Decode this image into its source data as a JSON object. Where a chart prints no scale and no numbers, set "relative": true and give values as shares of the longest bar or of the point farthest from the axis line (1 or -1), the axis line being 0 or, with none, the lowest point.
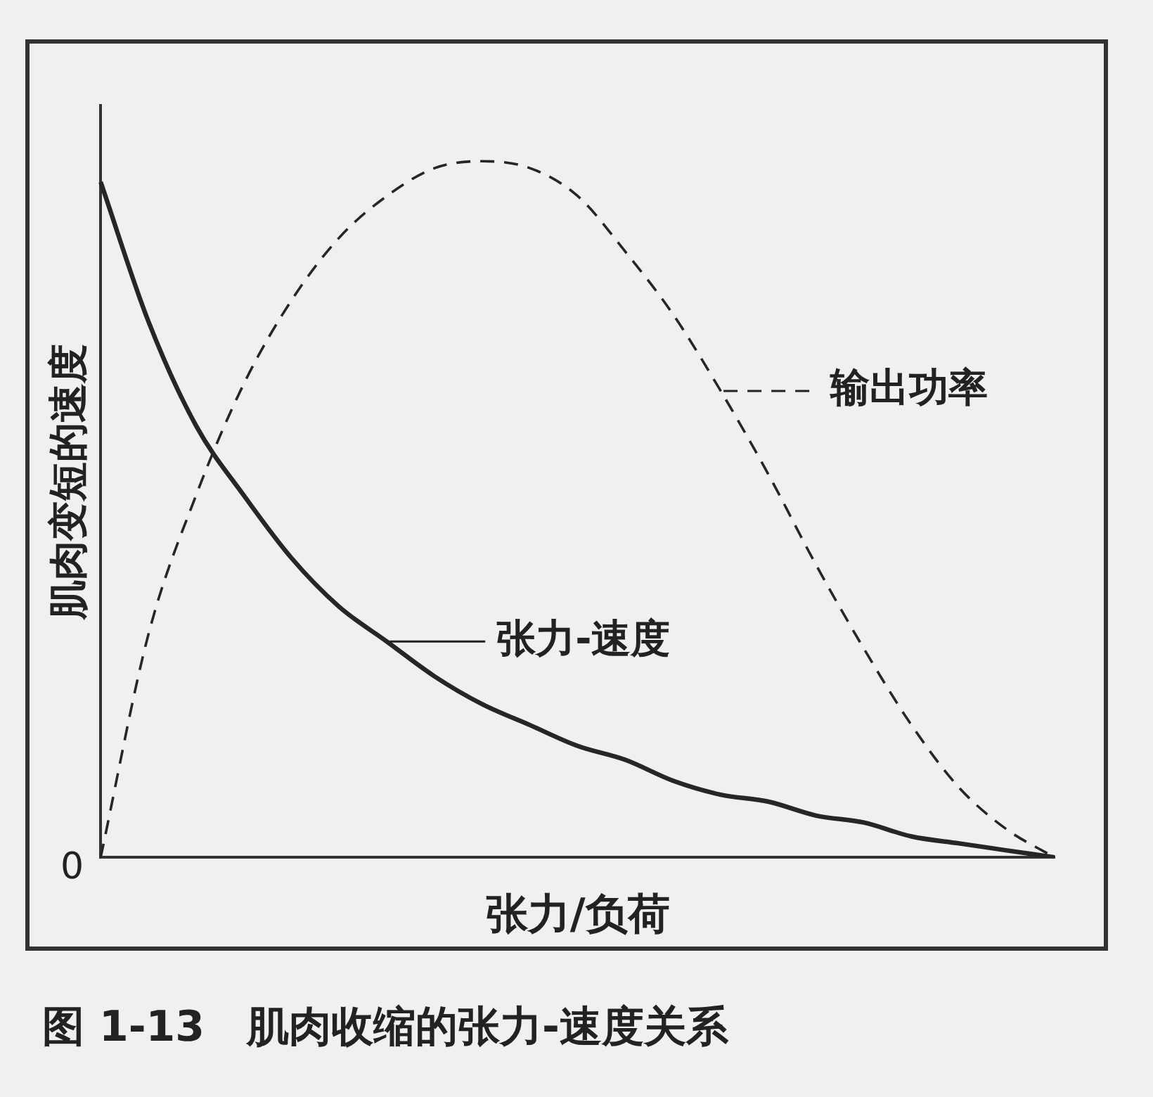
{
  "chart_data": {
    "type": "line",
    "relative": true,
    "title": "图 1-13　肌肉收缩的张力-速度关系",
    "xlabel": "张力/负荷",
    "ylabel": "肌肉变短的速度",
    "categories": [
      null,
      null,
      null,
      null,
      null,
      null,
      null,
      null,
      null,
      null,
      null,
      null,
      null,
      null,
      null,
      null,
      null,
      null,
      null,
      null,
      null
    ],
    "series": [
      {
        "name": "张力-速度",
        "color": "#262626",
        "line_style": "solid",
        "values": [
          0.97,
          0.77,
          0.62,
          0.52,
          0.43,
          0.36,
          0.31,
          0.26,
          0.22,
          0.19,
          0.16,
          0.14,
          0.11,
          0.09,
          0.08,
          0.06,
          0.05,
          0.03,
          0.02,
          0.01,
          0
        ]
      },
      {
        "name": "输出功率",
        "color": "#262626",
        "line_style": "dashed",
        "values": [
          0,
          0.32,
          0.52,
          0.68,
          0.8,
          0.89,
          0.95,
          0.99,
          1,
          0.99,
          0.95,
          0.87,
          0.78,
          0.67,
          0.55,
          0.42,
          0.3,
          0.19,
          0.1,
          0.04,
          0
        ]
      }
    ],
    "annotations": [
      "0"
    ],
    "grid": false,
    "legend": "right"
  }
}
